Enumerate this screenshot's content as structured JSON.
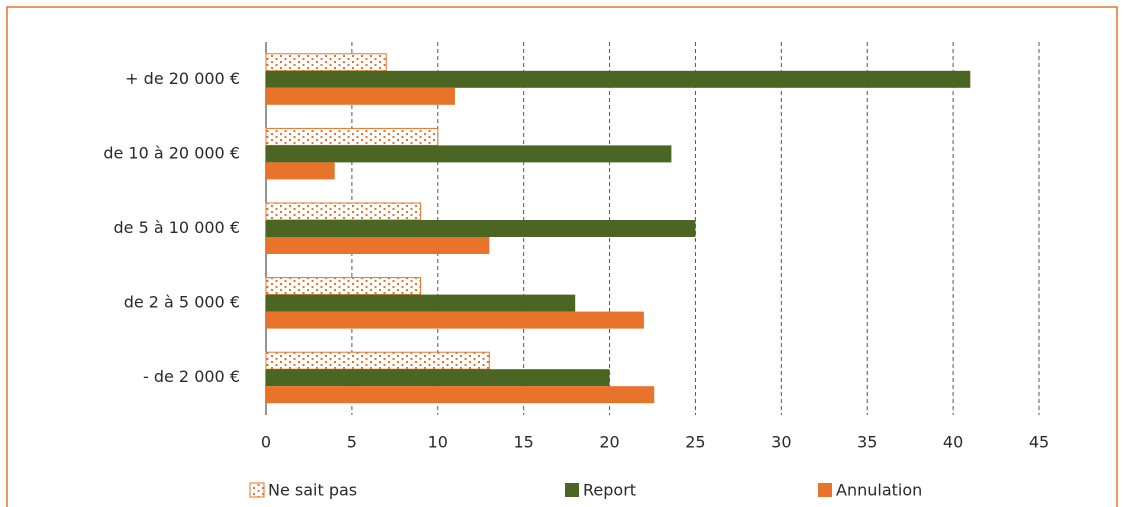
{
  "chart_data": {
    "type": "hbar",
    "categories": [
      "+ de 20 000 €",
      "de 10 à 20 000 €",
      "de 5 à 10 000 €",
      "de 2 à 5 000 €",
      "- de 2 000 €"
    ],
    "series": [
      {
        "name": "Ne sait pas",
        "color": "#e8732a",
        "pattern": "dots",
        "values": [
          7,
          10,
          9,
          9,
          13
        ]
      },
      {
        "name": "Report",
        "color": "#4a6622",
        "values": [
          41,
          23.6,
          25,
          18,
          20
        ]
      },
      {
        "name": "Annulation",
        "color": "#e8732a",
        "values": [
          11,
          4,
          13,
          22,
          22.6
        ]
      }
    ],
    "xlim": [
      0,
      45
    ],
    "xticks": [
      0,
      5,
      10,
      15,
      20,
      25,
      30,
      35,
      40,
      45
    ],
    "grid": true
  }
}
